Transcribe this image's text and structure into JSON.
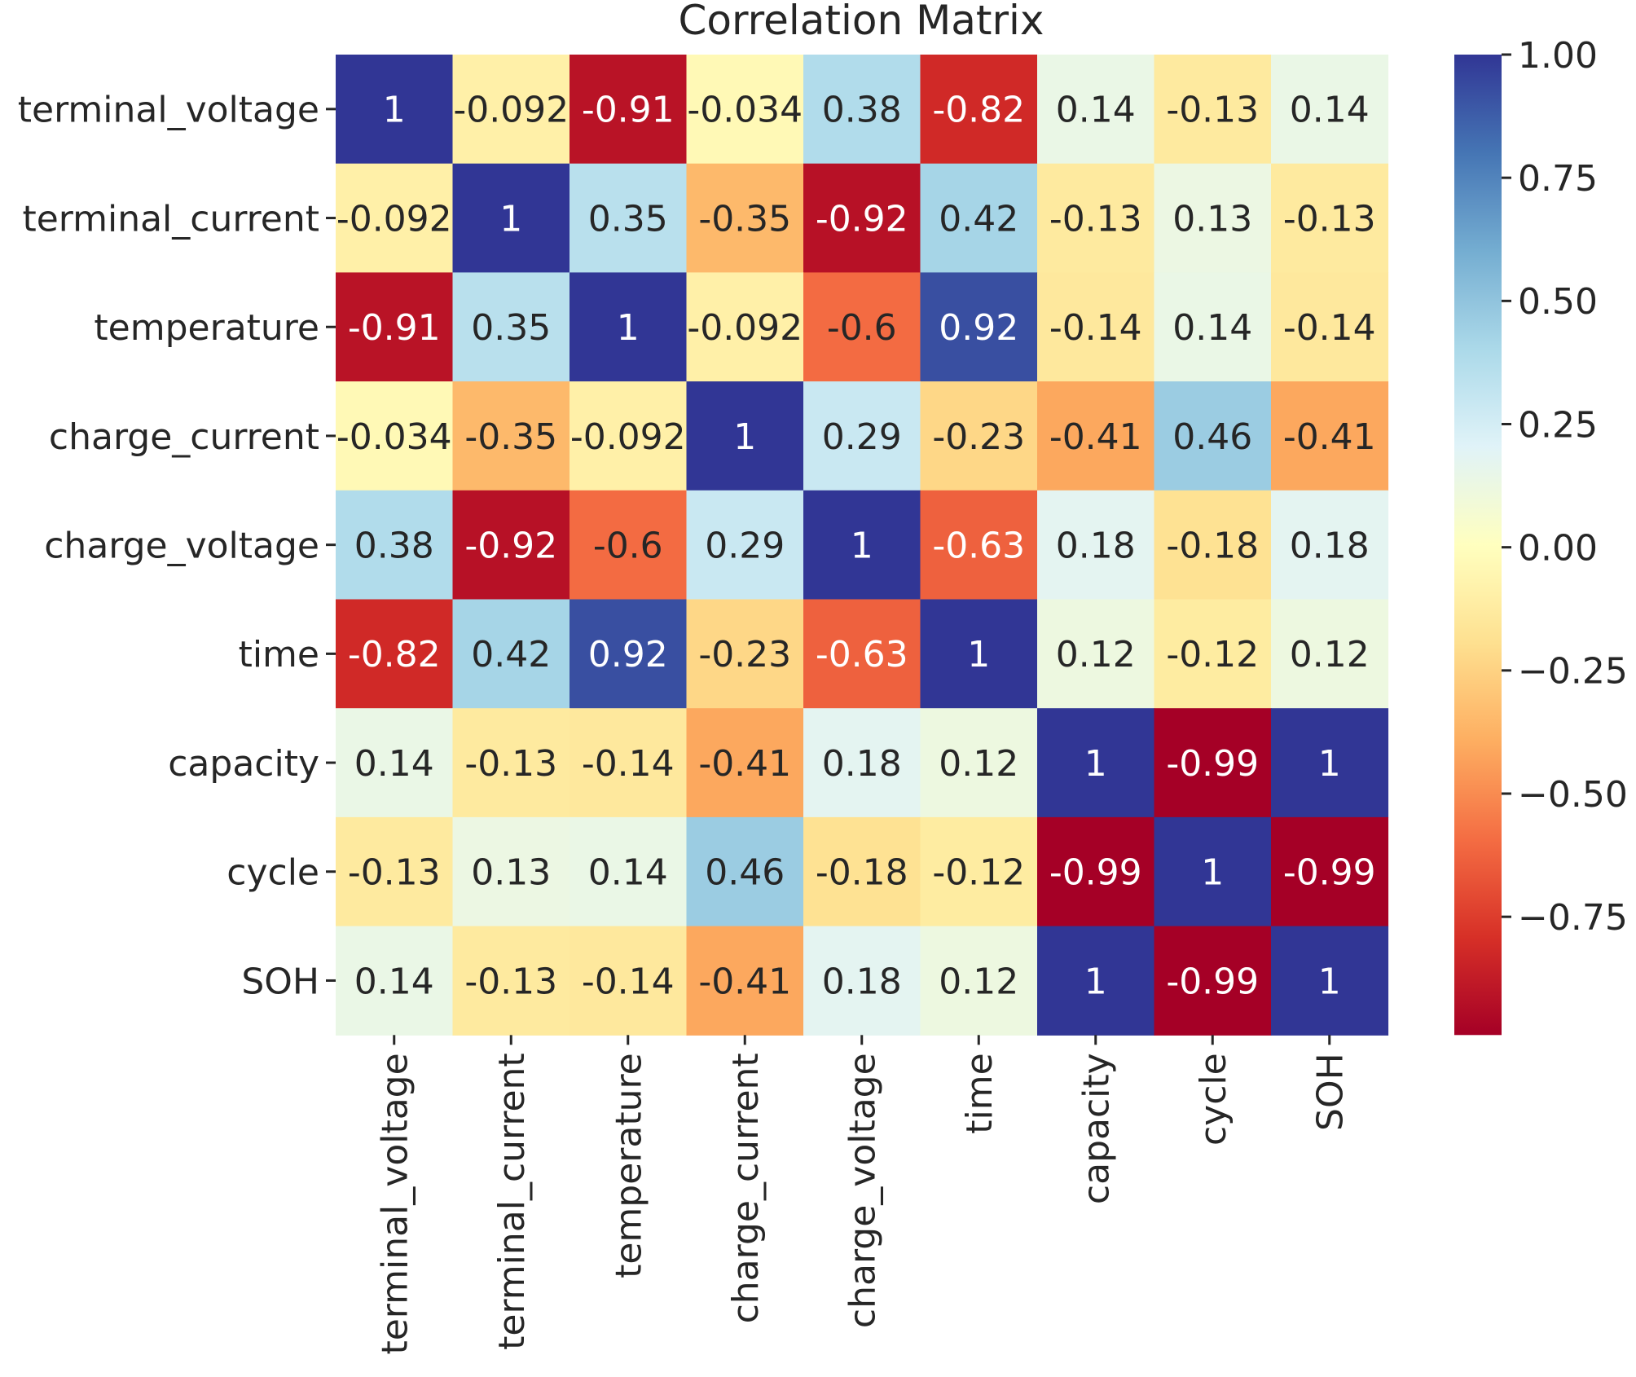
{
  "chart_data": {
    "type": "heatmap",
    "title": "Correlation Matrix",
    "xlabel": "",
    "ylabel": "",
    "colormap": "RdYlBu",
    "vmin": -1,
    "vmax": 1,
    "rows": [
      "terminal_voltage",
      "terminal_current",
      "temperature",
      "charge_current",
      "charge_voltage",
      "time",
      "capacity",
      "cycle",
      "SOH"
    ],
    "columns": [
      "terminal_voltage",
      "terminal_current",
      "temperature",
      "charge_current",
      "charge_voltage",
      "time",
      "capacity",
      "cycle",
      "SOH"
    ],
    "values": [
      [
        1,
        -0.092,
        -0.91,
        -0.034,
        0.38,
        -0.82,
        0.14,
        -0.13,
        0.14
      ],
      [
        -0.092,
        1,
        0.35,
        -0.35,
        -0.92,
        0.42,
        -0.13,
        0.13,
        -0.13
      ],
      [
        -0.91,
        0.35,
        1,
        -0.092,
        -0.6,
        0.92,
        -0.14,
        0.14,
        -0.14
      ],
      [
        -0.034,
        -0.35,
        -0.092,
        1,
        0.29,
        -0.23,
        -0.41,
        0.46,
        -0.41
      ],
      [
        0.38,
        -0.92,
        -0.6,
        0.29,
        1,
        -0.63,
        0.18,
        -0.18,
        0.18
      ],
      [
        -0.82,
        0.42,
        0.92,
        -0.23,
        -0.63,
        1,
        0.12,
        -0.12,
        0.12
      ],
      [
        0.14,
        -0.13,
        -0.14,
        -0.41,
        0.18,
        0.12,
        1,
        -0.99,
        1
      ],
      [
        -0.13,
        0.13,
        0.14,
        0.46,
        -0.18,
        -0.12,
        -0.99,
        1,
        -0.99
      ],
      [
        0.14,
        -0.13,
        -0.14,
        -0.41,
        0.18,
        0.12,
        1,
        -0.99,
        1
      ]
    ],
    "annotations": [
      [
        "1",
        "-0.092",
        "-0.91",
        "-0.034",
        "0.38",
        "-0.82",
        "0.14",
        "-0.13",
        "0.14"
      ],
      [
        "-0.092",
        "1",
        "0.35",
        "-0.35",
        "-0.92",
        "0.42",
        "-0.13",
        "0.13",
        "-0.13"
      ],
      [
        "-0.91",
        "0.35",
        "1",
        "-0.092",
        "-0.6",
        "0.92",
        "-0.14",
        "0.14",
        "-0.14"
      ],
      [
        "-0.034",
        "-0.35",
        "-0.092",
        "1",
        "0.29",
        "-0.23",
        "-0.41",
        "0.46",
        "-0.41"
      ],
      [
        "0.38",
        "-0.92",
        "-0.6",
        "0.29",
        "1",
        "-0.63",
        "0.18",
        "-0.18",
        "0.18"
      ],
      [
        "-0.82",
        "0.42",
        "0.92",
        "-0.23",
        "-0.63",
        "1",
        "0.12",
        "-0.12",
        "0.12"
      ],
      [
        "0.14",
        "-0.13",
        "-0.14",
        "-0.41",
        "0.18",
        "0.12",
        "1",
        "-0.99",
        "1"
      ],
      [
        "-0.13",
        "0.13",
        "0.14",
        "0.46",
        "-0.18",
        "-0.12",
        "-0.99",
        "1",
        "-0.99"
      ],
      [
        "0.14",
        "-0.13",
        "-0.14",
        "-0.41",
        "0.18",
        "0.12",
        "1",
        "-0.99",
        "1"
      ]
    ],
    "colorbar": {
      "ticks": [
        1.0,
        0.75,
        0.5,
        0.25,
        0.0,
        -0.25,
        -0.5,
        -0.75
      ],
      "tick_labels": [
        "1.00",
        "0.75",
        "0.50",
        "0.25",
        "0.00",
        "−0.25",
        "−0.50",
        "−0.75"
      ],
      "range": [
        -0.99,
        1.0
      ]
    },
    "grid": false,
    "legend": "none"
  }
}
